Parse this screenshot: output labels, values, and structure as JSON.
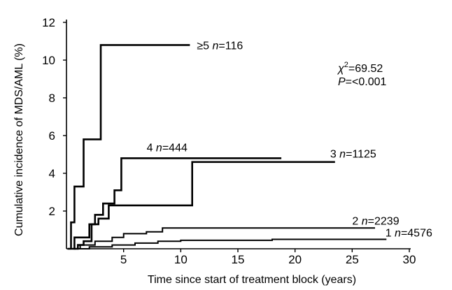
{
  "chart_data": {
    "type": "line",
    "step": true,
    "title": "",
    "xlabel": "Time since start of treatment block (years)",
    "ylabel": "Cumulative incidence of MDS/AML (%)",
    "xlim": [
      0,
      30
    ],
    "ylim": [
      0,
      12
    ],
    "xticks": [
      5,
      10,
      15,
      20,
      25,
      30
    ],
    "yticks": [
      2,
      4,
      6,
      8,
      10,
      12
    ],
    "grid": false,
    "legend": "none",
    "annotations": {
      "chi_symbol": "χ",
      "chi_sup": "2",
      "chi_value": "=69.52",
      "p_symbol": "P",
      "p_value": "=<0.001"
    },
    "series": [
      {
        "name": "≥5",
        "n_symbol": "n",
        "n_value": "=116",
        "x": [
          0.1,
          0.4,
          0.4,
          0.7,
          0.7,
          1.5,
          1.5,
          3.0,
          3.0,
          10.8
        ],
        "y": [
          0,
          0,
          1.4,
          1.4,
          3.3,
          3.3,
          5.8,
          5.8,
          10.8,
          10.8
        ]
      },
      {
        "name": "4",
        "n_symbol": "n",
        "n_value": "=444",
        "x": [
          0.5,
          0.7,
          0.7,
          2.0,
          2.0,
          2.5,
          2.5,
          3.2,
          3.2,
          4.2,
          4.2,
          4.8,
          4.8,
          18.8
        ],
        "y": [
          0,
          0,
          0.6,
          0.6,
          1.3,
          1.3,
          1.8,
          1.8,
          2.4,
          2.4,
          3.1,
          3.1,
          4.8,
          4.8
        ]
      },
      {
        "name": "3",
        "n_symbol": "n",
        "n_value": "=1125",
        "x": [
          0.7,
          1.0,
          1.0,
          1.5,
          1.5,
          2.2,
          2.2,
          2.8,
          2.8,
          3.7,
          3.7,
          11.0,
          11.0,
          23.5
        ],
        "y": [
          0,
          0,
          0.2,
          0.2,
          0.4,
          0.4,
          1.3,
          1.3,
          1.6,
          1.6,
          2.3,
          2.3,
          4.6,
          4.6
        ],
        "thin": false
      },
      {
        "name": "2",
        "n_symbol": "n",
        "n_value": "=2239",
        "x": [
          0.3,
          1.2,
          1.2,
          2.5,
          2.5,
          4.0,
          4.0,
          5.0,
          5.0,
          7.0,
          7.0,
          8.4,
          8.4,
          27.0
        ],
        "y": [
          0,
          0,
          0.2,
          0.2,
          0.4,
          0.4,
          0.6,
          0.6,
          0.8,
          0.8,
          0.9,
          0.9,
          1.1,
          1.1
        ],
        "thin": true
      },
      {
        "name": "1",
        "n_symbol": "n",
        "n_value": "=4576",
        "x": [
          0.5,
          2.0,
          2.0,
          4.0,
          4.0,
          6.0,
          6.0,
          8.0,
          8.0,
          10.0,
          10.0,
          18.0,
          18.0,
          28.0
        ],
        "y": [
          0,
          0,
          0.1,
          0.1,
          0.2,
          0.2,
          0.3,
          0.3,
          0.4,
          0.4,
          0.45,
          0.45,
          0.5,
          0.5
        ],
        "thin": true
      }
    ]
  }
}
